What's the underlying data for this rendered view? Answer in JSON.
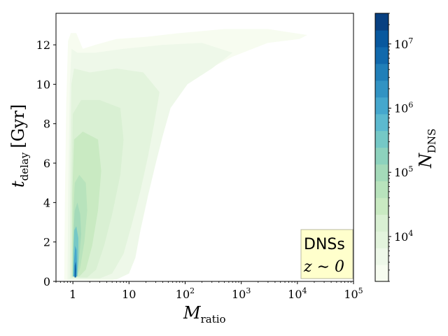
{
  "chart_data": {
    "type": "heatmap",
    "title": "",
    "x_axis": {
      "scale": "log",
      "range": [
        0.5,
        100000
      ],
      "ticks": [
        {
          "value": 1,
          "label": "1"
        },
        {
          "value": 10,
          "label": "10"
        },
        {
          "value": 100,
          "label": "10",
          "exp": "2"
        },
        {
          "value": 1000,
          "label": "10",
          "exp": "3"
        },
        {
          "value": 10000,
          "label": "10",
          "exp": "4"
        },
        {
          "value": 100000,
          "label": "10",
          "exp": "5"
        }
      ]
    },
    "y_axis": {
      "scale": "linear",
      "range": [
        0,
        13.6
      ],
      "ticks": [
        0,
        2,
        4,
        6,
        8,
        10,
        12
      ]
    },
    "xlabel": {
      "main": "M",
      "sub": "ratio"
    },
    "ylabel": {
      "main": "t",
      "sub": "delay",
      "unit": "[Gyr]"
    },
    "colorbar": {
      "scale": "log",
      "range": [
        2000,
        30000000
      ],
      "ticks": [
        {
          "value": 10000,
          "label": "10",
          "exp": "4"
        },
        {
          "value": 100000,
          "label": "10",
          "exp": "5"
        },
        {
          "value": 1000000,
          "label": "10",
          "exp": "6"
        },
        {
          "value": 10000000,
          "label": "10",
          "exp": "7"
        }
      ],
      "label": {
        "main": "N",
        "sub": "DNS"
      },
      "colors": [
        "#f7fcf0",
        "#eef8e9",
        "#e3f4dd",
        "#d9f0d3",
        "#c9eac2",
        "#b8e3bc",
        "#a4dab9",
        "#8dd2bd",
        "#75c8c6",
        "#5cb9cf",
        "#45a7cd",
        "#3293c3",
        "#217fb8",
        "#1169ac",
        "#08589e",
        "#084081"
      ]
    },
    "annotation": {
      "line1": "DNSs",
      "line2": "z ∼ 0"
    },
    "grid": false,
    "density_levels": [
      {
        "level": 0,
        "polygon": [
          [
            0.7,
            0.05
          ],
          [
            0.72,
            4
          ],
          [
            0.76,
            9
          ],
          [
            0.82,
            12.2
          ],
          [
            0.92,
            12.6
          ],
          [
            1.15,
            12.6
          ],
          [
            1.5,
            11.8
          ],
          [
            2.5,
            12.0
          ],
          [
            6,
            12.3
          ],
          [
            20,
            12.4
          ],
          [
            80,
            12.6
          ],
          [
            500,
            12.8
          ],
          [
            3000,
            12.8
          ],
          [
            15000,
            12.5
          ],
          [
            11000,
            12.3
          ],
          [
            3000,
            12.1
          ],
          [
            700,
            11.4
          ],
          [
            200,
            10.6
          ],
          [
            90,
            9.8
          ],
          [
            45,
            8.5
          ],
          [
            35,
            7.2
          ],
          [
            28,
            5.8
          ],
          [
            20,
            4.2
          ],
          [
            15,
            2.5
          ],
          [
            12,
            1.2
          ],
          [
            9,
            0.4
          ],
          [
            5,
            0.05
          ]
        ]
      },
      {
        "level": 1,
        "polygon": [
          [
            0.8,
            0.1
          ],
          [
            0.83,
            5
          ],
          [
            0.88,
            10
          ],
          [
            0.95,
            11.8
          ],
          [
            1.2,
            11.6
          ],
          [
            2.5,
            11.6
          ],
          [
            8,
            11.8
          ],
          [
            40,
            12.0
          ],
          [
            200,
            12.1
          ],
          [
            700,
            11.6
          ],
          [
            300,
            10.8
          ],
          [
            110,
            10.0
          ],
          [
            55,
            8.8
          ],
          [
            40,
            7.4
          ],
          [
            30,
            6.0
          ],
          [
            22,
            4.4
          ],
          [
            16,
            2.6
          ],
          [
            13,
            1.2
          ],
          [
            10,
            0.4
          ],
          [
            6,
            0.1
          ]
        ]
      },
      {
        "level": 2,
        "polygon": [
          [
            0.88,
            0.15
          ],
          [
            0.9,
            6
          ],
          [
            0.94,
            10
          ],
          [
            1.05,
            10.8
          ],
          [
            2,
            10.6
          ],
          [
            6,
            10.8
          ],
          [
            18,
            10.6
          ],
          [
            35,
            9.6
          ],
          [
            28,
            8.0
          ],
          [
            22,
            6.4
          ],
          [
            16,
            4.6
          ],
          [
            11,
            2.8
          ],
          [
            8,
            1.4
          ],
          [
            5,
            0.4
          ],
          [
            3,
            0.15
          ]
        ]
      },
      {
        "level": 3,
        "polygon": [
          [
            0.93,
            0.2
          ],
          [
            0.95,
            5
          ],
          [
            1.0,
            8.5
          ],
          [
            1.4,
            9.2
          ],
          [
            3,
            9.2
          ],
          [
            7,
            8.8
          ],
          [
            8,
            7.2
          ],
          [
            7,
            5.4
          ],
          [
            5,
            3.4
          ],
          [
            3.6,
            1.8
          ],
          [
            2.6,
            0.6
          ],
          [
            1.8,
            0.2
          ]
        ]
      },
      {
        "level": 4,
        "polygon": [
          [
            0.96,
            0.25
          ],
          [
            0.98,
            4.5
          ],
          [
            1.05,
            7.2
          ],
          [
            1.5,
            7.6
          ],
          [
            2.8,
            7.2
          ],
          [
            3.2,
            5.6
          ],
          [
            2.8,
            3.6
          ],
          [
            2.2,
            1.8
          ],
          [
            1.7,
            0.6
          ],
          [
            1.3,
            0.25
          ]
        ]
      },
      {
        "level": 5,
        "polygon": [
          [
            1.0,
            0.25
          ],
          [
            1.02,
            3.5
          ],
          [
            1.08,
            5.0
          ],
          [
            1.3,
            5.4
          ],
          [
            1.7,
            5.0
          ],
          [
            1.8,
            3.6
          ],
          [
            1.6,
            2.0
          ],
          [
            1.35,
            0.7
          ],
          [
            1.2,
            0.25
          ]
        ]
      },
      {
        "level": 6,
        "polygon": [
          [
            1.0,
            0.25
          ],
          [
            1.02,
            2.4
          ],
          [
            1.08,
            3.6
          ],
          [
            1.2,
            4.0
          ],
          [
            1.35,
            3.4
          ],
          [
            1.4,
            2.4
          ],
          [
            1.3,
            1.2
          ],
          [
            1.2,
            0.25
          ]
        ]
      },
      {
        "level": 8,
        "polygon": [
          [
            1.0,
            0.25
          ],
          [
            1.02,
            1.6
          ],
          [
            1.06,
            2.6
          ],
          [
            1.15,
            2.8
          ],
          [
            1.25,
            2.2
          ],
          [
            1.25,
            1.2
          ],
          [
            1.2,
            0.25
          ]
        ]
      },
      {
        "level": 10,
        "polygon": [
          [
            1.03,
            0.25
          ],
          [
            1.05,
            1.0
          ],
          [
            1.1,
            1.8
          ],
          [
            1.16,
            1.6
          ],
          [
            1.18,
            0.8
          ],
          [
            1.16,
            0.25
          ]
        ]
      },
      {
        "level": 13,
        "polygon": [
          [
            1.07,
            0.2
          ],
          [
            1.08,
            0.8
          ],
          [
            1.12,
            1.0
          ],
          [
            1.15,
            0.6
          ],
          [
            1.14,
            0.2
          ]
        ]
      }
    ]
  }
}
